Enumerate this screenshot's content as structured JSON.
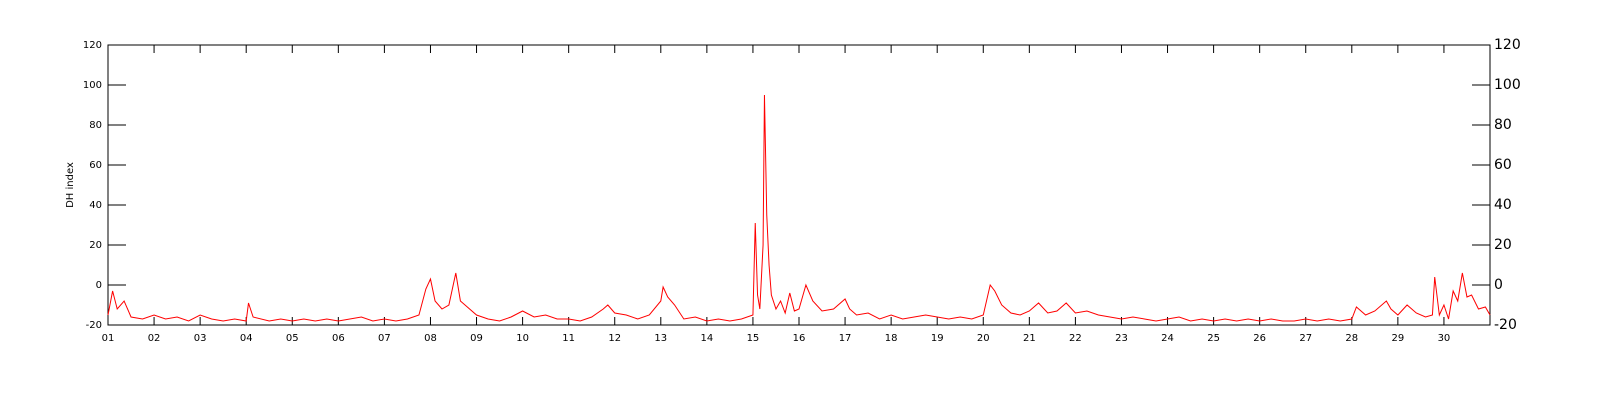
{
  "chart_data": {
    "type": "line",
    "y_label": "DH index",
    "color": "#ff0000",
    "x": [
      1,
      1.1,
      1.2,
      1.35,
      1.5,
      1.75,
      2,
      2.25,
      2.5,
      2.75,
      3,
      3.25,
      3.5,
      3.75,
      4,
      4.05,
      4.15,
      4.5,
      4.75,
      5,
      5.25,
      5.5,
      5.75,
      6,
      6.25,
      6.5,
      6.75,
      7,
      7.25,
      7.5,
      7.75,
      7.9,
      8,
      8.1,
      8.25,
      8.4,
      8.55,
      8.65,
      8.8,
      9,
      9.25,
      9.5,
      9.75,
      10,
      10.25,
      10.5,
      10.75,
      11,
      11.25,
      11.5,
      11.75,
      11.85,
      12,
      12.25,
      12.5,
      12.75,
      13,
      13.05,
      13.15,
      13.3,
      13.5,
      13.75,
      14,
      14.25,
      14.5,
      14.75,
      15,
      15.05,
      15.1,
      15.15,
      15.22,
      15.25,
      15.3,
      15.35,
      15.4,
      15.5,
      15.6,
      15.7,
      15.8,
      15.9,
      16,
      16.15,
      16.3,
      16.5,
      16.75,
      17,
      17.1,
      17.25,
      17.5,
      17.75,
      18,
      18.25,
      18.5,
      18.75,
      19,
      19.25,
      19.5,
      19.75,
      20,
      20.15,
      20.25,
      20.4,
      20.6,
      20.8,
      21,
      21.2,
      21.4,
      21.6,
      21.8,
      22,
      22.25,
      22.5,
      22.75,
      23,
      23.25,
      23.5,
      23.75,
      24,
      24.25,
      24.5,
      24.75,
      25,
      25.25,
      25.5,
      25.75,
      26,
      26.25,
      26.5,
      26.75,
      27,
      27.25,
      27.5,
      27.75,
      28,
      28.1,
      28.3,
      28.5,
      28.75,
      28.85,
      29,
      29.2,
      29.4,
      29.6,
      29.75,
      29.8,
      29.9,
      30,
      30.1,
      30.2,
      30.3,
      30.4,
      30.5,
      30.6,
      30.75,
      30.9,
      31
    ],
    "values": [
      -15,
      -3,
      -12,
      -8,
      -16,
      -17,
      -15,
      -17,
      -16,
      -18,
      -15,
      -17,
      -18,
      -17,
      -18,
      -9,
      -16,
      -18,
      -17,
      -18,
      -17,
      -18,
      -17,
      -18,
      -17,
      -16,
      -18,
      -17,
      -18,
      -17,
      -15,
      -2,
      3,
      -8,
      -12,
      -10,
      6,
      -8,
      -11,
      -15,
      -17,
      -18,
      -16,
      -13,
      -16,
      -15,
      -17,
      -17,
      -18,
      -16,
      -12,
      -10,
      -14,
      -15,
      -17,
      -15,
      -8,
      -1,
      -6,
      -10,
      -17,
      -16,
      -18,
      -17,
      -18,
      -17,
      -15,
      31,
      -5,
      -12,
      20,
      95,
      35,
      10,
      -5,
      -12,
      -8,
      -14,
      -4,
      -13,
      -12,
      0,
      -8,
      -13,
      -12,
      -7,
      -12,
      -15,
      -14,
      -17,
      -15,
      -17,
      -16,
      -15,
      -16,
      -17,
      -16,
      -17,
      -15,
      0,
      -3,
      -10,
      -14,
      -15,
      -13,
      -9,
      -14,
      -13,
      -9,
      -14,
      -13,
      -15,
      -16,
      -17,
      -16,
      -17,
      -18,
      -17,
      -16,
      -18,
      -17,
      -18,
      -17,
      -18,
      -17,
      -18,
      -17,
      -18,
      -18,
      -17,
      -18,
      -17,
      -18,
      -17,
      -11,
      -15,
      -13,
      -8,
      -12,
      -15,
      -10,
      -14,
      -16,
      -15,
      4,
      -15,
      -10,
      -17,
      -3,
      -8,
      6,
      -6,
      -5,
      -12,
      -11,
      -15
    ],
    "xlim": [
      1,
      31
    ],
    "ylim": [
      -20,
      120
    ],
    "yticks": [
      -20,
      0,
      20,
      40,
      60,
      80,
      100,
      120
    ],
    "xticks": [
      {
        "value": 1,
        "label": "01"
      },
      {
        "value": 2,
        "label": "02"
      },
      {
        "value": 3,
        "label": "03"
      },
      {
        "value": 4,
        "label": "04"
      },
      {
        "value": 5,
        "label": "05"
      },
      {
        "value": 6,
        "label": "06"
      },
      {
        "value": 7,
        "label": "07"
      },
      {
        "value": 8,
        "label": "08"
      },
      {
        "value": 9,
        "label": "09"
      },
      {
        "value": 10,
        "label": "10"
      },
      {
        "value": 11,
        "label": "11"
      },
      {
        "value": 12,
        "label": "12"
      },
      {
        "value": 13,
        "label": "13"
      },
      {
        "value": 14,
        "label": "14"
      },
      {
        "value": 15,
        "label": "15"
      },
      {
        "value": 16,
        "label": "16"
      },
      {
        "value": 17,
        "label": "17"
      },
      {
        "value": 18,
        "label": "18"
      },
      {
        "value": 19,
        "label": "19"
      },
      {
        "value": 20,
        "label": "20"
      },
      {
        "value": 21,
        "label": "21"
      },
      {
        "value": 22,
        "label": "22"
      },
      {
        "value": 23,
        "label": "23"
      },
      {
        "value": 24,
        "label": "24"
      },
      {
        "value": 25,
        "label": "25"
      },
      {
        "value": 26,
        "label": "26"
      },
      {
        "value": 27,
        "label": "27"
      },
      {
        "value": 28,
        "label": "28"
      },
      {
        "value": 29,
        "label": "29"
      },
      {
        "value": 30,
        "label": "30"
      }
    ],
    "grid": false
  }
}
